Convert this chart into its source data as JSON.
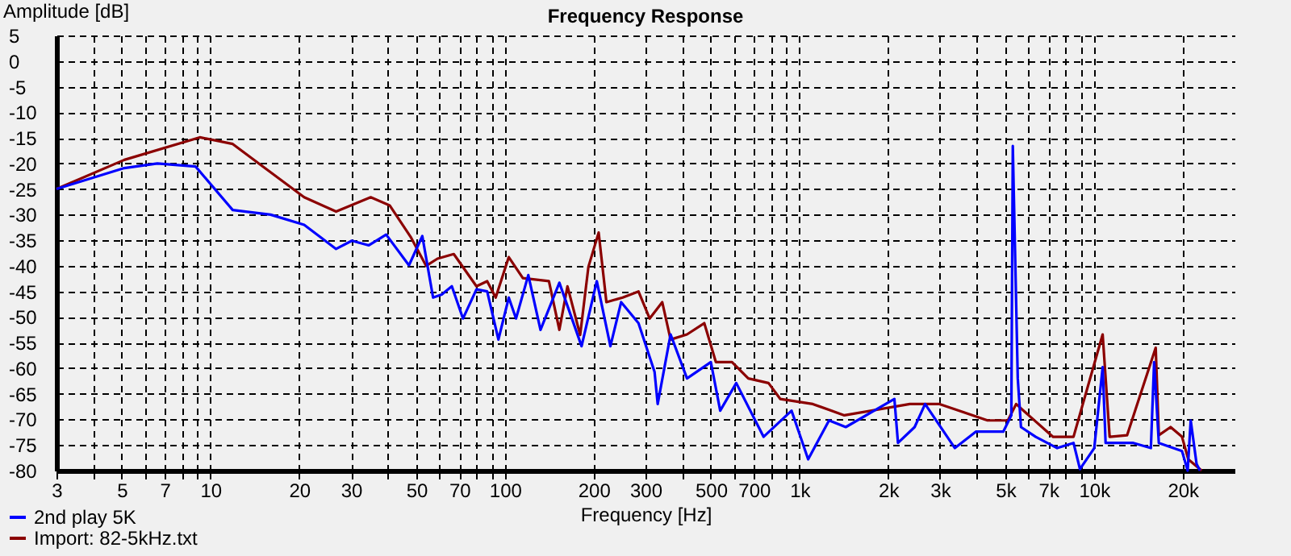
{
  "chart_data": {
    "type": "line",
    "title": "Frequency Response",
    "xlabel": "Frequency [Hz]",
    "ylabel": "Amplitude [dB]",
    "log": "x",
    "grid": true,
    "legend": "bottom left",
    "marker": "none",
    "line_style": "solid",
    "xlim": [
      3,
      30000
    ],
    "ylim": [
      -80,
      5
    ],
    "xticks": [
      3,
      {
        "value": 4,
        "label": null
      },
      5,
      {
        "value": 6,
        "label": null
      },
      7,
      {
        "value": 8,
        "label": null
      },
      {
        "value": 9,
        "label": null
      },
      10,
      20,
      30,
      {
        "value": 40,
        "label": null
      },
      50,
      {
        "value": 60,
        "label": null
      },
      70,
      {
        "value": 80,
        "label": null
      },
      {
        "value": 90,
        "label": null
      },
      100,
      200,
      300,
      {
        "value": 400,
        "label": null
      },
      500,
      {
        "value": 600,
        "label": null
      },
      700,
      {
        "value": 800,
        "label": null
      },
      {
        "value": 900,
        "label": null
      },
      {
        "value": 1000,
        "label": "1k"
      },
      {
        "value": 2000,
        "label": "2k"
      },
      {
        "value": 3000,
        "label": "3k"
      },
      {
        "value": 4000,
        "label": null
      },
      {
        "value": 5000,
        "label": "5k"
      },
      {
        "value": 6000,
        "label": null
      },
      {
        "value": 7000,
        "label": "7k"
      },
      {
        "value": 8000,
        "label": null
      },
      {
        "value": 9000,
        "label": null
      },
      {
        "value": 10000,
        "label": "10k"
      },
      {
        "value": 20000,
        "label": "20k"
      }
    ],
    "yticks": [
      5,
      0,
      -5,
      -10,
      -15,
      -20,
      -25,
      -30,
      -35,
      -40,
      -45,
      -50,
      -55,
      -60,
      -65,
      -70,
      -75,
      -80
    ],
    "series": [
      {
        "name": "2nd play 5K",
        "color": "#0000ff",
        "x": [
          3,
          5.1,
          6.6,
          8.9,
          11.9,
          16,
          20.8,
          26.7,
          30.2,
          34.5,
          39.5,
          47.2,
          52.4,
          57,
          61,
          66,
          72,
          80,
          87,
          95,
          103,
          109,
          120,
          132,
          153,
          182,
          205,
          228,
          248,
          284,
          322,
          330,
          365,
          415,
          500,
          538,
          610,
          755,
          940,
          1070,
          1260,
          1436,
          2100,
          2160,
          2460,
          2670,
          3370,
          3970,
          4920,
          5240,
          5300,
          5510,
          5650,
          6340,
          7500,
          8520,
          8960,
          10020,
          10700,
          10950,
          13600,
          15600,
          16000,
          16600,
          19900,
          20800,
          21300,
          22300,
          22900
        ],
        "values": [
          -25,
          -20.9,
          -20,
          -20.6,
          -29.1,
          -30,
          -32,
          -36.7,
          -35.1,
          -36,
          -33.9,
          -39.9,
          -34.2,
          -46.2,
          -45.6,
          -44,
          -50.3,
          -44.6,
          -45,
          -54.4,
          -46.2,
          -50.3,
          -41.8,
          -52.5,
          -43.3,
          -55.7,
          -43,
          -55.7,
          -47.1,
          -51.2,
          -60.7,
          -67,
          -53.4,
          -62,
          -58.8,
          -68.3,
          -62.9,
          -73.4,
          -68.3,
          -77.8,
          -70.2,
          -71.5,
          -66,
          -74.6,
          -71.5,
          -67,
          -75.6,
          -72.4,
          -72.4,
          -69.2,
          -16.6,
          -62,
          -71.5,
          -73.4,
          -75.6,
          -74.6,
          -79.7,
          -75.6,
          -59.8,
          -74.6,
          -74.6,
          -75.6,
          -58.8,
          -74.6,
          -76.2,
          -80,
          -70.2,
          -78.7,
          -80
        ]
      },
      {
        "name": "Import: 82-5kHz.txt",
        "color": "#8b0000",
        "x": [
          3,
          5.1,
          9.2,
          11.9,
          15.3,
          20.8,
          26.7,
          35,
          40.6,
          48,
          54,
          59,
          67,
          80,
          87,
          93,
          103,
          115,
          141,
          153,
          163,
          180,
          192,
          208,
          221,
          251,
          284,
          310,
          342,
          365,
          415,
          475,
          520,
          590,
          670,
          785,
          860,
          1110,
          1420,
          2370,
          2990,
          4350,
          5100,
          5440,
          6000,
          7250,
          8520,
          10700,
          11300,
          12950,
          16200,
          16600,
          18200,
          19900,
          20900,
          23200
        ],
        "values": [
          -25,
          -19.3,
          -14.9,
          -16.2,
          -20.9,
          -26.6,
          -29.4,
          -26.6,
          -28.2,
          -34.5,
          -40,
          -38.6,
          -37.7,
          -44,
          -43,
          -46.2,
          -38.3,
          -42.4,
          -43,
          -52.5,
          -44,
          -53.5,
          -40.2,
          -33.5,
          -47.1,
          -46.2,
          -45,
          -50.3,
          -47.1,
          -54.4,
          -53.4,
          -51.2,
          -58.8,
          -58.8,
          -62,
          -62.9,
          -66,
          -67,
          -69.2,
          -67,
          -67,
          -70.2,
          -70.2,
          -67,
          -69.2,
          -73.4,
          -73.4,
          -53.4,
          -73.4,
          -73.1,
          -56,
          -73.1,
          -71.5,
          -73.4,
          -77.8,
          -80
        ]
      }
    ]
  }
}
